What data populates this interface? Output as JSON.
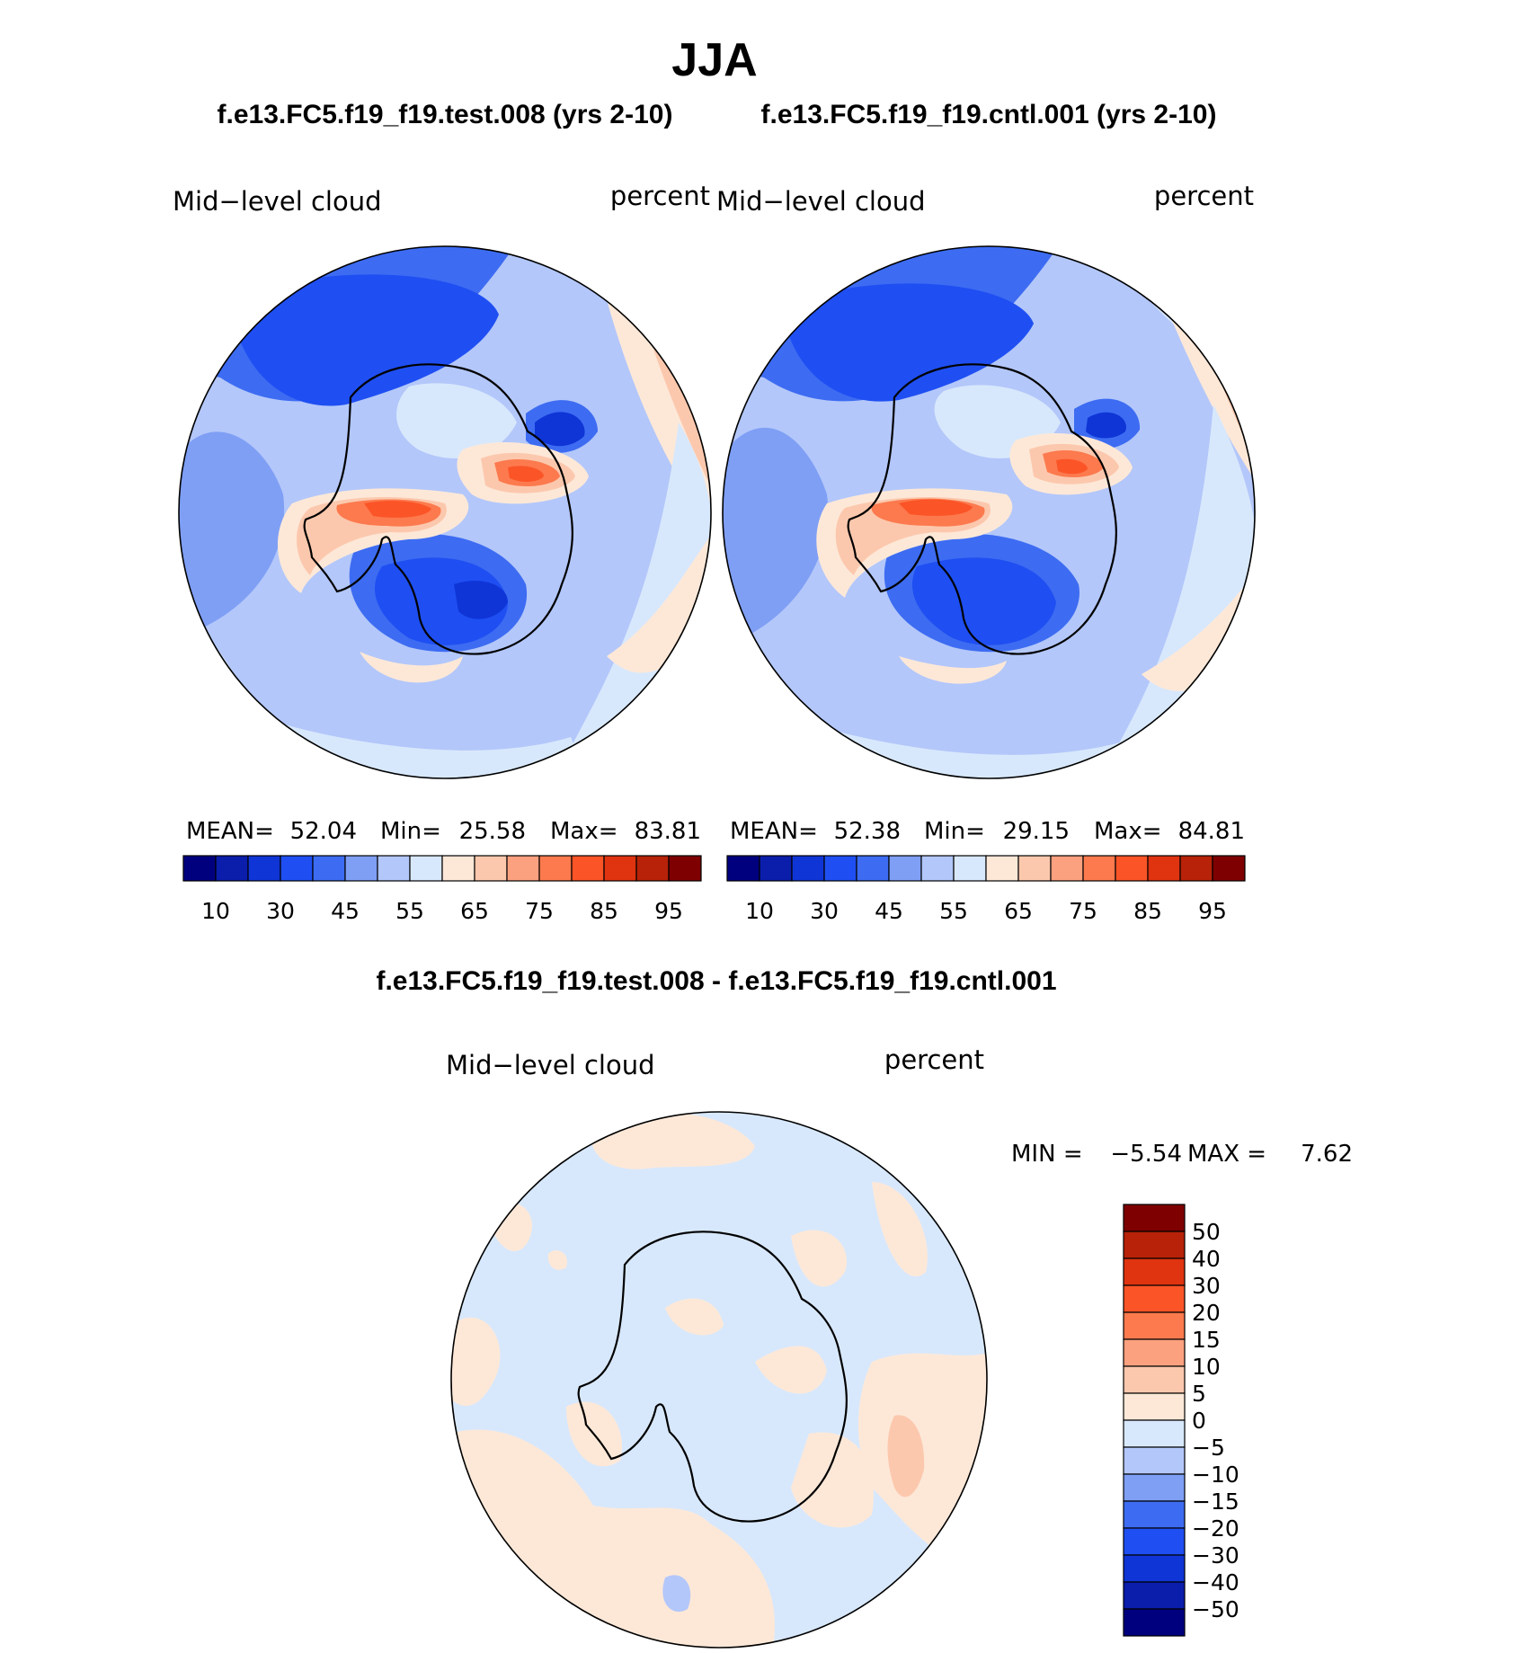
{
  "title": "JJA",
  "colors": {
    "levels": [
      "#00007f",
      "#0a1dab",
      "#0f35d6",
      "#1f4ff2",
      "#3d6cf2",
      "#7f9ff5",
      "#b3c7fa",
      "#d8e8fc",
      "#fde8d8",
      "#fcc8ad",
      "#fca17f",
      "#fc7a4e",
      "#fb5427",
      "#e03310",
      "#b72208",
      "#7f0000"
    ],
    "land": "#d8e8fc",
    "outline": "#000000"
  },
  "panels": [
    {
      "case": "f.e13.FC5.f19_f19.test.008 (yrs 2-10)",
      "variable": "Mid−level  cloud",
      "units": "percent",
      "mean_label": "MEAN=",
      "mean": "52.04",
      "min_label": "Min=",
      "min": "25.58",
      "max_label": "Max=",
      "max": "83.81",
      "colorbar_ticks": [
        "10",
        "30",
        "45",
        "55",
        "65",
        "75",
        "85",
        "95"
      ]
    },
    {
      "case": "f.e13.FC5.f19_f19.cntl.001 (yrs 2-10)",
      "variable": "Mid−level  cloud",
      "units": "percent",
      "mean_label": "MEAN=",
      "mean": "52.38",
      "min_label": "Min=",
      "min": "29.15",
      "max_label": "Max=",
      "max": "84.81",
      "colorbar_ticks": [
        "10",
        "30",
        "45",
        "55",
        "65",
        "75",
        "85",
        "95"
      ]
    }
  ],
  "difference": {
    "title": "f.e13.FC5.f19_f19.test.008 - f.e13.FC5.f19_f19.cntl.001",
    "variable": "Mid−level  cloud",
    "units": "percent",
    "min_label": "MIN  =",
    "min": "−5.54",
    "max_label": "MAX  =",
    "max": "7.62",
    "colorbar_ticks": [
      "50",
      "40",
      "30",
      "20",
      "15",
      "10",
      "5",
      "0",
      "−5",
      "−10",
      "−15",
      "−20",
      "−30",
      "−40",
      "−50"
    ],
    "colorbar_colors": [
      "#7f0000",
      "#b72208",
      "#e03310",
      "#fb5427",
      "#fc7a4e",
      "#fca17f",
      "#fcc8ad",
      "#fde8d8",
      "#d8e8fc",
      "#b3c7fa",
      "#7f9ff5",
      "#3d6cf2",
      "#1f4ff2",
      "#0f35d6",
      "#0a1dab",
      "#00007f"
    ]
  }
}
